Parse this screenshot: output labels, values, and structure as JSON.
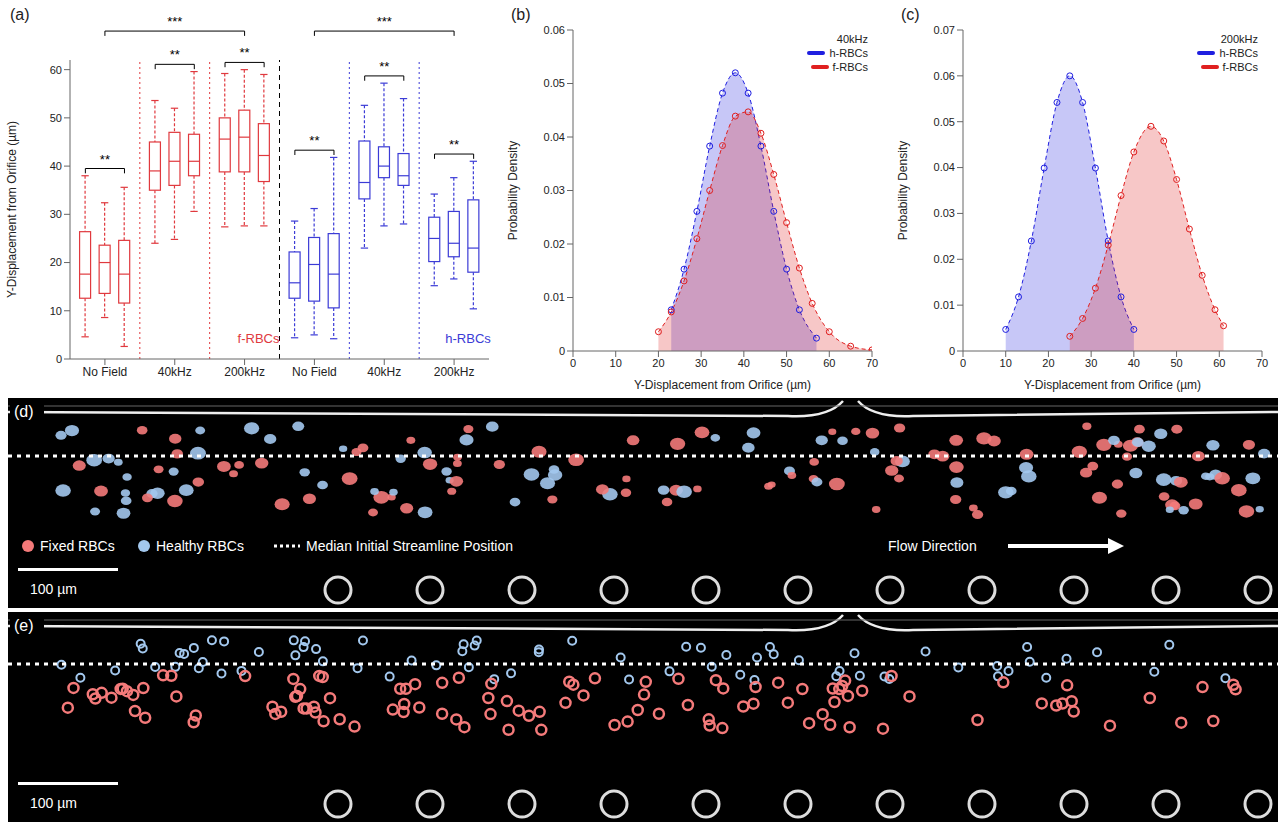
{
  "chart_data": [
    {
      "type": "box",
      "panel": "(a)",
      "y_label": "Y-Displacement from Orifice (µm)",
      "categories": [
        "No Field",
        "40kHz",
        "200kHz",
        "No Field",
        "40kHz",
        "200kHz"
      ],
      "colors": [
        "#e0393e",
        "#e0393e",
        "#e0393e",
        "#3b3bd6",
        "#3b3bd6",
        "#3b3bd6"
      ],
      "ylim": [
        0,
        62
      ],
      "yticks": [
        0,
        10,
        20,
        30,
        40,
        50,
        60
      ],
      "boxes": [
        [
          {
            "min": 4.6,
            "q1": 12.6,
            "median": 17.6,
            "q3": 26.4,
            "max": 38
          },
          {
            "min": 8.6,
            "q1": 13.6,
            "median": 20,
            "q3": 23.6,
            "max": 32.4
          },
          {
            "min": 2.6,
            "q1": 11.6,
            "median": 17.6,
            "q3": 24.6,
            "max": 35.6
          }
        ],
        [
          {
            "min": 24,
            "q1": 35,
            "median": 39,
            "q3": 45,
            "max": 53.6
          },
          {
            "min": 24.8,
            "q1": 36,
            "median": 41,
            "q3": 47,
            "max": 52
          },
          {
            "min": 30.6,
            "q1": 38,
            "median": 41,
            "q3": 46.6,
            "max": 59.6
          }
        ],
        [
          {
            "min": 27.4,
            "q1": 38.8,
            "median": 45.6,
            "q3": 50,
            "max": 59.2
          },
          {
            "min": 27.6,
            "q1": 38.8,
            "median": 46,
            "q3": 51.6,
            "max": 60
          },
          {
            "min": 27.6,
            "q1": 36.8,
            "median": 42.2,
            "q3": 48.8,
            "max": 59
          }
        ],
        [
          {
            "min": 4.4,
            "q1": 12.6,
            "median": 15.8,
            "q3": 22.2,
            "max": 28.6
          },
          {
            "min": 5,
            "q1": 12,
            "median": 19.6,
            "q3": 25.2,
            "max": 31.2
          },
          {
            "min": 4.2,
            "q1": 10.6,
            "median": 17.6,
            "q3": 26,
            "max": 41.8
          }
        ],
        [
          {
            "min": 23,
            "q1": 33.2,
            "median": 36.6,
            "q3": 45.2,
            "max": 52.6
          },
          {
            "min": 27.6,
            "q1": 37.6,
            "median": 40,
            "q3": 44,
            "max": 57.2
          },
          {
            "min": 28,
            "q1": 36,
            "median": 38,
            "q3": 42.6,
            "max": 54
          }
        ],
        [
          {
            "min": 15.2,
            "q1": 20.2,
            "median": 25,
            "q3": 29.4,
            "max": 34.2
          },
          {
            "min": 16.6,
            "q1": 21.2,
            "median": 24,
            "q3": 30.6,
            "max": 37.6
          },
          {
            "min": 10.4,
            "q1": 18,
            "median": 23,
            "q3": 33,
            "max": 41
          }
        ]
      ],
      "group_labels": [
        {
          "text": "f-RBCs",
          "color": "#e0393e",
          "category": 2
        },
        {
          "text": "h-RBCs",
          "color": "#3b3bd6",
          "category": 5
        }
      ],
      "annotations": [
        {
          "text": "**",
          "categories": [
            0
          ]
        },
        {
          "text": "**",
          "categories": [
            1
          ]
        },
        {
          "text": "**",
          "categories": [
            2
          ]
        },
        {
          "text": "**",
          "categories": [
            3
          ]
        },
        {
          "text": "**",
          "categories": [
            4
          ]
        },
        {
          "text": "**",
          "categories": [
            5
          ]
        },
        {
          "text": "***",
          "categories": [
            0,
            2
          ]
        },
        {
          "text": "***",
          "categories": [
            3,
            5
          ]
        }
      ]
    },
    {
      "type": "line",
      "panel": "(b)",
      "title": "40kHz",
      "x_label": "Y-Displacement from Orifice (µm)",
      "y_label": "Probability Density",
      "xlim": [
        0,
        70
      ],
      "xticks": [
        0,
        10,
        20,
        30,
        40,
        50,
        60,
        70
      ],
      "ylim": [
        0,
        0.06
      ],
      "yticks": [
        0,
        0.01,
        0.02,
        0.03,
        0.04,
        0.05,
        0.06
      ],
      "legend": "upper right",
      "marker": "circle",
      "line_style": "dashed",
      "series": [
        {
          "name": "h-RBCs",
          "color": "#1f1fe0",
          "x": [
            23,
            26,
            29,
            32,
            35,
            38,
            41,
            44,
            47,
            50,
            53,
            57
          ],
          "values": [
            0.0077,
            0.0153,
            0.0261,
            0.0383,
            0.0482,
            0.052,
            0.0482,
            0.0383,
            0.0261,
            0.0153,
            0.0077,
            0.0024
          ]
        },
        {
          "name": "f-RBCs",
          "color": "#e02020",
          "x": [
            20,
            23,
            26,
            29,
            32,
            35,
            38,
            41,
            44,
            47,
            50,
            53,
            56,
            60,
            65,
            70
          ],
          "values": [
            0.0036,
            0.0073,
            0.0131,
            0.021,
            0.03,
            0.0384,
            0.0439,
            0.0447,
            0.0407,
            0.033,
            0.024,
            0.0155,
            0.0089,
            0.0036,
            0.0009,
            0.0002
          ]
        }
      ]
    },
    {
      "type": "line",
      "panel": "(c)",
      "title": "200kHz",
      "x_label": "Y-Displacement from Orifice (µm)",
      "y_label": "Probability Density",
      "xlim": [
        0,
        70
      ],
      "xticks": [
        0,
        10,
        20,
        30,
        40,
        50,
        60,
        70
      ],
      "ylim": [
        0,
        0.07
      ],
      "yticks": [
        0,
        0.01,
        0.02,
        0.03,
        0.04,
        0.05,
        0.06,
        0.07
      ],
      "legend": "upper right",
      "marker": "circle",
      "line_style": "dashed",
      "series": [
        {
          "name": "h-RBCs",
          "color": "#1f1fe0",
          "x": [
            10,
            13,
            16,
            19,
            22,
            25,
            28,
            31,
            34,
            37,
            40
          ],
          "values": [
            0.0047,
            0.0118,
            0.024,
            0.0399,
            0.0542,
            0.06,
            0.0542,
            0.0399,
            0.024,
            0.0118,
            0.0047
          ]
        },
        {
          "name": "f-RBCs",
          "color": "#e02020",
          "x": [
            25,
            28,
            31,
            34,
            37,
            40,
            44,
            47,
            50,
            53,
            56,
            59,
            61
          ],
          "values": [
            0.0032,
            0.0071,
            0.0137,
            0.0231,
            0.0339,
            0.0434,
            0.049,
            0.0458,
            0.0374,
            0.0266,
            0.0165,
            0.009,
            0.0055
          ]
        }
      ]
    }
  ],
  "images": [
    {
      "panel": "(d)",
      "legend": [
        {
          "name": "Fixed RBCs",
          "color": "#f47a7a"
        },
        {
          "name": "Healthy RBCs",
          "color": "#a3c8ee"
        }
      ],
      "line_label": "Median Initial Streamline Position",
      "flow_label": "Flow Direction",
      "scale_bar": "100 µm"
    },
    {
      "panel": "(e)",
      "scale_bar": "100 µm"
    }
  ]
}
